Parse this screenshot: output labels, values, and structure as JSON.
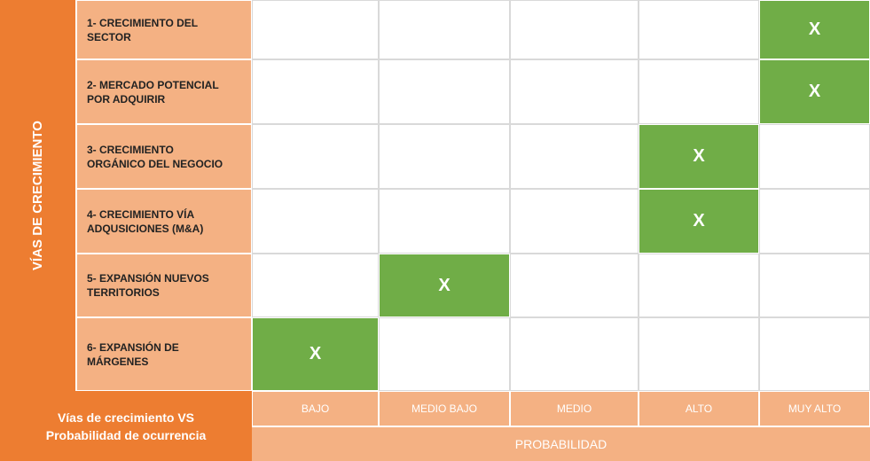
{
  "matrix": {
    "side_title": "VÍAS DE CRECIMIENTO",
    "corner_label": "Vías de crecimiento VS\nProbabilidad de ocurrencia",
    "axis_title": "PROBABILIDAD",
    "columns": [
      "BAJO",
      "MEDIO BAJO",
      "MEDIO",
      "ALTO",
      "MUY ALTO"
    ],
    "rows": [
      {
        "label": "1- CRECIMIENTO DEL\nSECTOR",
        "cells": [
          null,
          null,
          null,
          null,
          "X"
        ]
      },
      {
        "label": "2- MERCADO POTENCIAL\nPOR ADQUIRIR",
        "cells": [
          null,
          null,
          null,
          null,
          "X"
        ]
      },
      {
        "label": "3- CRECIMIENTO\nORGÁNICO DEL NEGOCIO",
        "cells": [
          null,
          null,
          null,
          "X",
          null
        ]
      },
      {
        "label": "4- CRECIMIENTO VÍA\nADQUSICIONES (M&A)",
        "cells": [
          null,
          null,
          null,
          "X",
          null
        ]
      },
      {
        "label": "5- EXPANSIÓN NUEVOS\nTERRITORIOS",
        "cells": [
          null,
          "X",
          null,
          null,
          null
        ]
      },
      {
        "label": "6- EXPANSIÓN DE\nMÁRGENES",
        "cells": [
          "X",
          null,
          null,
          null,
          null
        ]
      }
    ]
  }
}
